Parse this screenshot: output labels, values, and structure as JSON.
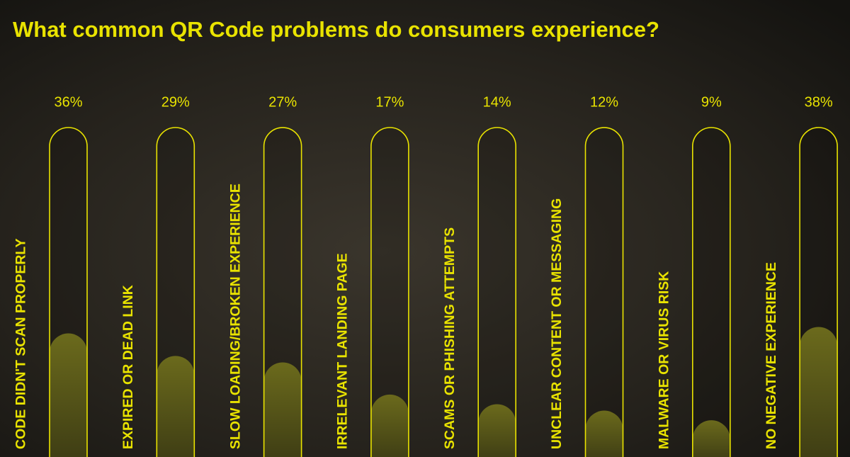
{
  "chart_data": {
    "type": "capsule-bar",
    "title": "What common QR Code problems do consumers experience?",
    "categories": [
      "CODE DIDN'T SCAN PROPERLY",
      "EXPIRED OR DEAD LINK",
      "SLOW LOADING/BROKEN EXPERIENCE",
      "IRRELEVANT LANDING PAGE",
      "SCAMS OR PHISHING ATTEMPTS",
      "UNCLEAR CONTENT OR MESSAGING",
      "MALWARE OR VIRUS RISK",
      "NO NEGATIVE EXPERIENCE"
    ],
    "values": [
      36,
      29,
      27,
      17,
      14,
      12,
      9,
      38
    ],
    "value_labels": [
      "36%",
      "29%",
      "27%",
      "17%",
      "14%",
      "12%",
      "9%",
      "38%"
    ],
    "ylim": [
      0,
      100
    ],
    "color": "#e9e300"
  }
}
